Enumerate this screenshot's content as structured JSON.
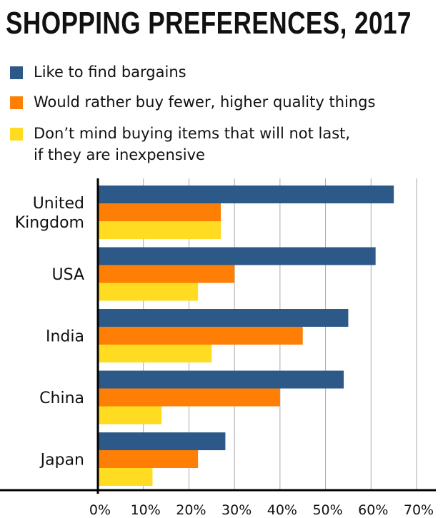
{
  "chart_data": {
    "type": "bar",
    "orientation": "horizontal",
    "title": "SHOPPING PREFERENCES, 2017",
    "categories": [
      [
        "United",
        "Kingdom"
      ],
      [
        "USA"
      ],
      [
        "India"
      ],
      [
        "China"
      ],
      [
        "Japan"
      ]
    ],
    "series": [
      {
        "name": "Like to find bargains",
        "color": "#2c5987",
        "values": [
          65,
          61,
          55,
          54,
          28
        ]
      },
      {
        "name": "Would rather buy fewer, higher quality things",
        "color": "#ff7f06",
        "values": [
          27,
          30,
          45,
          40,
          22
        ]
      },
      {
        "name": [
          "Don’t mind buying items that will not last,",
          "if they are inexpensive"
        ],
        "color": "#ffdc22",
        "values": [
          27,
          22,
          25,
          14,
          12
        ]
      }
    ],
    "xlim": [
      0,
      70
    ],
    "xticks": [
      "0%",
      "10%",
      "20%",
      "30%",
      "40%",
      "50%",
      "60%",
      "70%"
    ],
    "grid": true,
    "legend_placement": "top-left"
  }
}
